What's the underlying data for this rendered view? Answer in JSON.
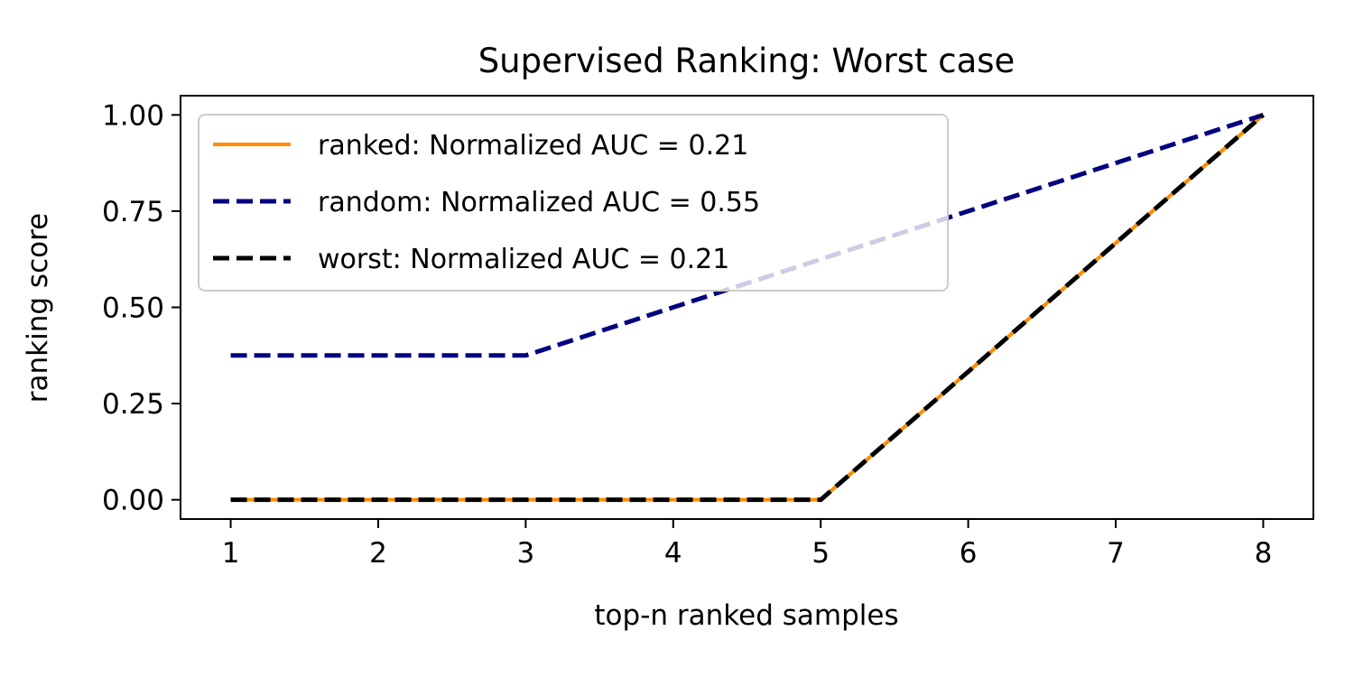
{
  "chart_data": {
    "type": "line",
    "title": "Supervised Ranking: Worst case",
    "xlabel": "top-n ranked samples",
    "ylabel": "ranking score",
    "x": [
      1,
      2,
      3,
      4,
      5,
      6,
      7,
      8
    ],
    "xlim": [
      0.66,
      8.34
    ],
    "ylim": [
      -0.05,
      1.05
    ],
    "xticks": [
      1,
      2,
      3,
      4,
      5,
      6,
      7,
      8
    ],
    "xtick_labels": [
      "1",
      "2",
      "3",
      "4",
      "5",
      "6",
      "7",
      "8"
    ],
    "yticks": [
      0,
      0.25,
      0.5,
      0.75,
      1.0
    ],
    "ytick_labels": [
      "0.00",
      "0.25",
      "0.50",
      "0.75",
      "1.00"
    ],
    "grid": false,
    "legend_position": "upper-left",
    "series": [
      {
        "name": "ranked: Normalized AUC = 0.21",
        "values": [
          0,
          0,
          0,
          0,
          0,
          0.333,
          0.667,
          1.0
        ],
        "color": "#ff8c00",
        "style": "solid"
      },
      {
        "name": "random: Normalized AUC = 0.55",
        "values": [
          0.375,
          0.375,
          0.375,
          0.5,
          0.625,
          0.75,
          0.875,
          1.0
        ],
        "color": "#000080",
        "style": "dashed"
      },
      {
        "name": "worst: Normalized AUC = 0.21",
        "values": [
          0,
          0,
          0,
          0,
          0,
          0.333,
          0.667,
          1.0
        ],
        "color": "#000000",
        "style": "dashed"
      }
    ]
  }
}
